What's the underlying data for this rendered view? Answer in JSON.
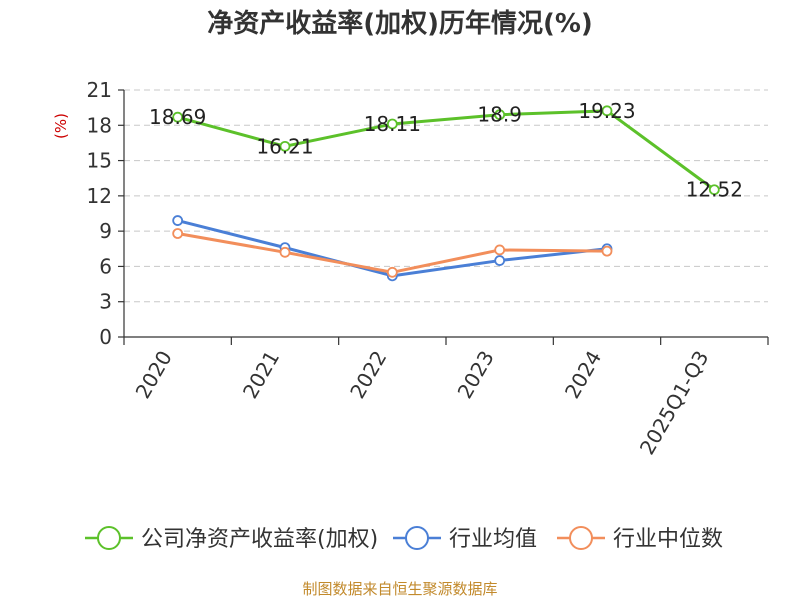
{
  "chart_data": {
    "type": "line",
    "title": "净资产收益率(加权)历年情况(%)",
    "ylabel": "(%)",
    "xlabel": "",
    "categories": [
      "2020",
      "2021",
      "2022",
      "2023",
      "2024",
      "2025Q1-Q3"
    ],
    "ylim": [
      0,
      21
    ],
    "yticks": [
      0,
      3,
      6,
      9,
      12,
      15,
      18,
      21
    ],
    "grid": true,
    "legend_position": "bottom",
    "series": [
      {
        "name": "公司净资产收益率(加权)",
        "color": "#5cc12a",
        "values": [
          18.69,
          16.21,
          18.11,
          18.9,
          19.23,
          12.52
        ],
        "labels": [
          "18.69",
          "16.21",
          "18.11",
          "18.9",
          "19.23",
          "12.52"
        ]
      },
      {
        "name": "行业均值",
        "color": "#4a7fd6",
        "values": [
          9.9,
          7.6,
          5.2,
          6.5,
          7.5,
          null
        ]
      },
      {
        "name": "行业中位数",
        "color": "#f28e5b",
        "values": [
          8.8,
          7.2,
          5.5,
          7.4,
          7.3,
          null
        ]
      }
    ]
  },
  "source_text": "制图数据来自恒生聚源数据库"
}
